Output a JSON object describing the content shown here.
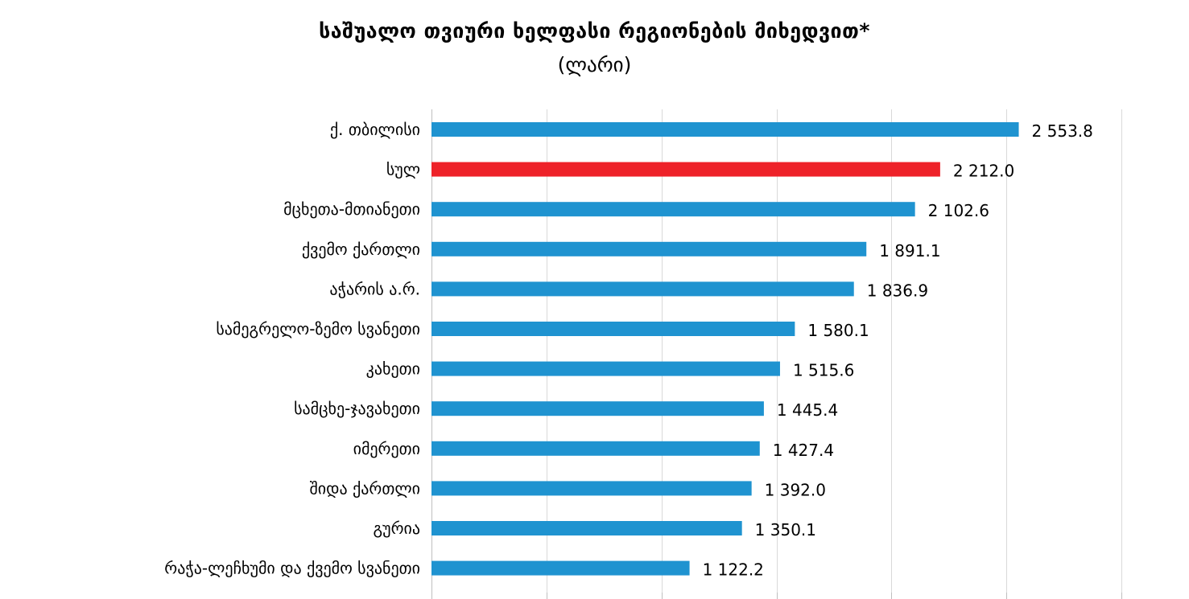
{
  "colors": {
    "bar": "#1F93D0",
    "highlight": "#EE2229",
    "gridline": "#D9D9D9",
    "axis": "#BFBFBF"
  },
  "chart_data": {
    "type": "bar",
    "orientation": "horizontal",
    "title": "საშუალო თვიური ხელფასი რეგიონების მიხედვით*",
    "subtitle": "(ლარი)",
    "xlabel": "",
    "ylabel": "",
    "xlim": [
      0,
      3000
    ],
    "grid": true,
    "legend": "none",
    "highlight_category": "სულ",
    "categories": [
      "ქ. თბილისი",
      "სულ",
      "მცხეთა-მთიანეთი",
      "ქვემო ქართლი",
      "აჭარის ა.რ.",
      "სამეგრელო-ზემო სვანეთი",
      "კახეთი",
      "სამცხე-ჯავახეთი",
      "იმერეთი",
      "შიდა ქართლი",
      "გურია",
      "რაჭა-ლეჩხუმი და ქვემო სვანეთი"
    ],
    "values": [
      2553.8,
      2212.0,
      2102.6,
      1891.1,
      1836.9,
      1580.1,
      1515.6,
      1445.4,
      1427.4,
      1392.0,
      1350.1,
      1122.2
    ],
    "value_labels": [
      "2 553.8",
      "2 212.0",
      "2 102.6",
      "1 891.1",
      "1 836.9",
      "1 580.1",
      "1 515.6",
      "1 445.4",
      "1 427.4",
      "1 392.0",
      "1 350.1",
      "1 122.2"
    ]
  }
}
